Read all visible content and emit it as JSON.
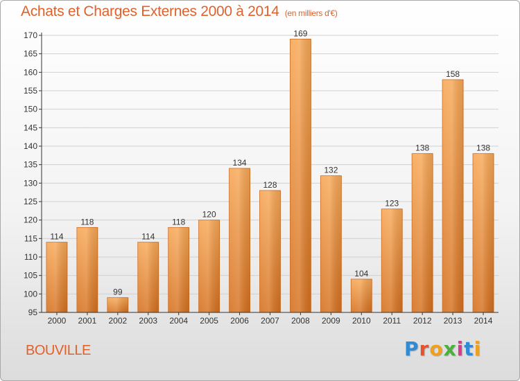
{
  "header": {
    "title": "Achats et Charges Externes 2000 à 2014",
    "unit": "(en milliers d'€)"
  },
  "footer": {
    "commune": "BOUVILLE",
    "logo_letters": [
      "P",
      "r",
      "o",
      "x",
      "i",
      "t",
      "i"
    ]
  },
  "chart_data": {
    "type": "bar",
    "title": "Achats et Charges Externes 2000 à 2014",
    "subtitle": "(en milliers d'€)",
    "xlabel": "",
    "ylabel": "",
    "categories": [
      "2000",
      "2001",
      "2002",
      "2003",
      "2004",
      "2005",
      "2006",
      "2007",
      "2008",
      "2009",
      "2010",
      "2011",
      "2012",
      "2013",
      "2014"
    ],
    "values": [
      114,
      118,
      99,
      114,
      118,
      120,
      134,
      128,
      169,
      132,
      104,
      123,
      138,
      158,
      138
    ],
    "ylim": [
      95,
      170
    ],
    "yticks": [
      95,
      100,
      105,
      110,
      115,
      120,
      125,
      130,
      135,
      140,
      145,
      150,
      155,
      160,
      165,
      170
    ],
    "grid": true,
    "legend": "none",
    "colors": {
      "bar_light": "#f7a857",
      "bar_dark": "#d5701e",
      "bar_edge": "#c8661c",
      "grid": "#d0d0d0",
      "axis": "#333333",
      "text": "#333333",
      "title": "#e0612a"
    }
  }
}
